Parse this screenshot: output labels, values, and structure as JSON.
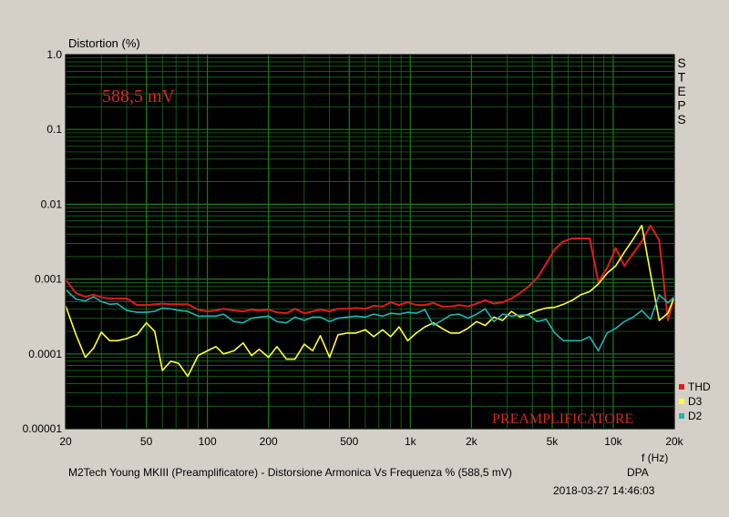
{
  "chart_data": {
    "type": "line",
    "ylabel": "Distortion (%)",
    "xlabel": "f (Hz)",
    "title": "M2Tech Young MKIII (Preamplificatore) - Distorsione Armonica Vs Frequenza % (588,5 mV)",
    "brand": "DPA",
    "timestamp": "2018-03-27 14:46:03",
    "level_annotation": "588,5 mV",
    "section_annotation": "PREAMPLIFICATORE",
    "side_label": "STEPS",
    "x_scale": "log",
    "y_scale": "log",
    "xlim": [
      20,
      20000
    ],
    "ylim": [
      1e-05,
      1.0
    ],
    "grid": true,
    "legend_position": "bottom-right",
    "x_ticks": [
      {
        "value": 20,
        "label": "20"
      },
      {
        "value": 50,
        "label": "50"
      },
      {
        "value": 100,
        "label": "100"
      },
      {
        "value": 200,
        "label": "200"
      },
      {
        "value": 500,
        "label": "500"
      },
      {
        "value": 1000,
        "label": "1k"
      },
      {
        "value": 2000,
        "label": "2k"
      },
      {
        "value": 5000,
        "label": "5k"
      },
      {
        "value": 10000,
        "label": "10k"
      },
      {
        "value": 20000,
        "label": "20k"
      }
    ],
    "y_ticks": [
      {
        "value": 1.0,
        "label": "1.0"
      },
      {
        "value": 0.1,
        "label": "0.1"
      },
      {
        "value": 0.01,
        "label": "0.01"
      },
      {
        "value": 0.001,
        "label": "0.001"
      },
      {
        "value": 0.0001,
        "label": "0.0001"
      },
      {
        "value": 1e-05,
        "label": "0.00001"
      }
    ],
    "series": [
      {
        "name": "THD",
        "color": "#e31a1c",
        "x": [
          20,
          22.5,
          25,
          27.5,
          30,
          33,
          36,
          40,
          45,
          50,
          55,
          60,
          66,
          72,
          80,
          90,
          100,
          110,
          120,
          135,
          150,
          165,
          180,
          200,
          220,
          245,
          270,
          300,
          330,
          360,
          400,
          440,
          490,
          540,
          600,
          660,
          730,
          800,
          880,
          970,
          1070,
          1180,
          1300,
          1430,
          1580,
          1740,
          1920,
          2120,
          2340,
          2580,
          2850,
          3150,
          3470,
          3830,
          4230,
          4670,
          5150,
          5690,
          6280,
          6930,
          7650,
          8440,
          9320,
          10290,
          11350,
          12530,
          13830,
          15260,
          16850,
          18600,
          20000
        ],
        "y": [
          0.00098,
          0.00065,
          0.00058,
          0.00062,
          0.00057,
          0.00055,
          0.00055,
          0.00055,
          0.00045,
          0.00045,
          0.00046,
          0.00047,
          0.00046,
          0.00046,
          0.00046,
          0.00039,
          0.00037,
          0.00038,
          0.0004,
          0.00038,
          0.00037,
          0.00039,
          0.00038,
          0.00039,
          0.00036,
          0.00035,
          0.0004,
          0.00035,
          0.00037,
          0.00039,
          0.00037,
          0.0004,
          0.0004,
          0.00041,
          0.0004,
          0.00044,
          0.00043,
          0.00049,
          0.00045,
          0.00049,
          0.00045,
          0.00045,
          0.00048,
          0.00043,
          0.00043,
          0.00045,
          0.00043,
          0.00047,
          0.00052,
          0.00047,
          0.00049,
          0.00055,
          0.00065,
          0.0008,
          0.00105,
          0.0016,
          0.0025,
          0.0032,
          0.0035,
          0.0035,
          0.0035,
          0.00092,
          0.0014,
          0.0026,
          0.0015,
          0.0022,
          0.0032,
          0.0052,
          0.0033,
          0.00028,
          0.00058
        ]
      },
      {
        "name": "D3",
        "color": "#ffff33",
        "x": [
          20,
          22.5,
          25,
          27.5,
          30,
          33,
          36,
          40,
          45,
          50,
          55,
          60,
          66,
          72,
          80,
          90,
          100,
          110,
          120,
          135,
          150,
          165,
          180,
          200,
          220,
          245,
          270,
          300,
          330,
          360,
          400,
          440,
          490,
          540,
          600,
          660,
          730,
          800,
          880,
          970,
          1070,
          1180,
          1300,
          1430,
          1580,
          1740,
          1920,
          2120,
          2340,
          2580,
          2850,
          3150,
          3470,
          3830,
          4230,
          4670,
          5150,
          5690,
          6280,
          6930,
          7650,
          8440,
          9320,
          10290,
          11350,
          12530,
          13830,
          15260,
          16850,
          18600,
          20000
        ],
        "y": [
          0.00044,
          0.00018,
          9e-05,
          0.00012,
          0.000195,
          0.00015,
          0.00015,
          0.00016,
          0.00018,
          0.00026,
          0.0002,
          6e-05,
          8e-05,
          7.5e-05,
          5e-05,
          9.5e-05,
          0.00011,
          0.000125,
          0.0001,
          0.00011,
          0.00014,
          9.5e-05,
          0.000115,
          9e-05,
          0.000125,
          8.5e-05,
          8.5e-05,
          0.000135,
          0.00011,
          0.000175,
          9e-05,
          0.00018,
          0.00019,
          0.00019,
          0.00021,
          0.00017,
          0.00021,
          0.00017,
          0.00023,
          0.00015,
          0.00019,
          0.00023,
          0.00026,
          0.00022,
          0.00019,
          0.00019,
          0.00022,
          0.00027,
          0.00024,
          0.00031,
          0.00028,
          0.00037,
          0.00031,
          0.00034,
          0.00038,
          0.00041,
          0.00042,
          0.00046,
          0.00052,
          0.00062,
          0.00068,
          0.00086,
          0.0012,
          0.0015,
          0.0023,
          0.0034,
          0.0052,
          0.0012,
          0.00028,
          0.00035,
          0.00058
        ]
      },
      {
        "name": "D2",
        "color": "#1fb5b5",
        "x": [
          20,
          22.5,
          25,
          27.5,
          30,
          33,
          36,
          40,
          45,
          50,
          55,
          60,
          66,
          72,
          80,
          90,
          100,
          110,
          120,
          135,
          150,
          165,
          180,
          200,
          220,
          245,
          270,
          300,
          330,
          360,
          400,
          440,
          490,
          540,
          600,
          660,
          730,
          800,
          880,
          970,
          1070,
          1180,
          1300,
          1430,
          1580,
          1740,
          1920,
          2120,
          2340,
          2580,
          2850,
          3150,
          3470,
          3830,
          4230,
          4670,
          5150,
          5690,
          6280,
          6930,
          7650,
          8440,
          9320,
          10290,
          11350,
          12530,
          13830,
          15260,
          16850,
          18600,
          20000
        ],
        "y": [
          0.00072,
          0.00054,
          0.00051,
          0.00058,
          0.0005,
          0.00046,
          0.00047,
          0.00038,
          0.00036,
          0.00036,
          0.00037,
          0.00041,
          0.0004,
          0.00038,
          0.00037,
          0.00032,
          0.00032,
          0.00032,
          0.00034,
          0.00027,
          0.00026,
          0.0003,
          0.00031,
          0.00032,
          0.00027,
          0.00026,
          0.00031,
          0.00028,
          0.00031,
          0.00031,
          0.00027,
          0.0003,
          0.00031,
          0.00032,
          0.00031,
          0.00034,
          0.00032,
          0.00035,
          0.00034,
          0.00036,
          0.00035,
          0.00039,
          0.00024,
          0.00028,
          0.00033,
          0.00034,
          0.0003,
          0.00034,
          0.0004,
          0.00027,
          0.00034,
          0.00032,
          0.00033,
          0.00033,
          0.00027,
          0.00029,
          0.00019,
          0.00015,
          0.00015,
          0.00015,
          0.00017,
          0.00011,
          0.00019,
          0.00022,
          0.00027,
          0.00031,
          0.00038,
          0.00029,
          0.00062,
          0.00048,
          0.00058
        ]
      }
    ]
  }
}
